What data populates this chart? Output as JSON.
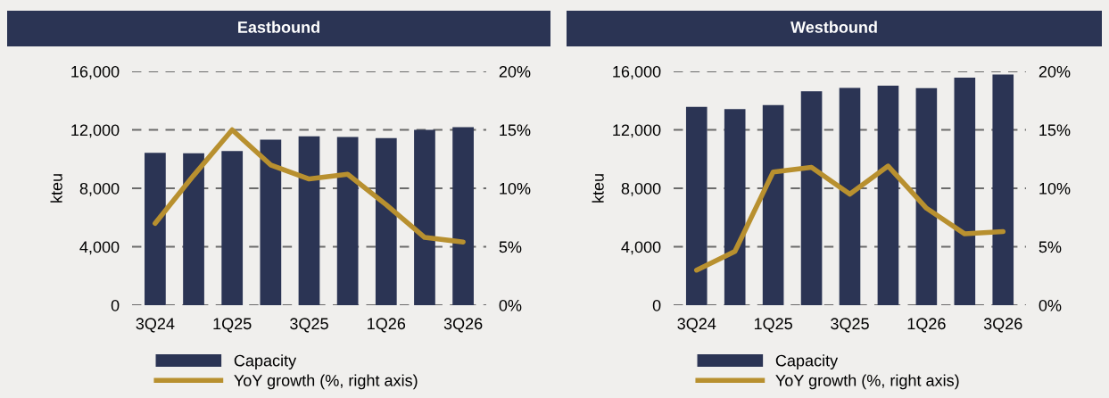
{
  "chart_data": [
    {
      "type": "bar",
      "title": "Eastbound",
      "ylabel": "kteu",
      "categories": [
        "3Q24",
        null,
        "1Q25",
        null,
        "3Q25",
        null,
        "1Q26",
        null,
        "3Q26"
      ],
      "series": [
        {
          "name": "Capacity",
          "color": "#2b3454",
          "values": [
            10430,
            10390,
            10550,
            11330,
            11550,
            11510,
            11430,
            12000,
            12190
          ]
        },
        {
          "name": "YoY growth (%, right axis)",
          "type": "line",
          "axis": "y2",
          "color": "#b8902f",
          "values": [
            7.0,
            11.1,
            15.0,
            12.0,
            10.8,
            11.2,
            8.6,
            5.8,
            5.4
          ]
        }
      ],
      "ylim": [
        0,
        16000
      ],
      "yticks": [
        0,
        {
          "value": 4000,
          "label": "4,000"
        },
        {
          "value": 8000,
          "label": "8,000"
        },
        {
          "value": 12000,
          "label": "12,000"
        },
        {
          "value": 16000,
          "label": "16,000"
        }
      ],
      "y2lim": [
        0,
        20
      ],
      "y2ticks": [
        {
          "value": 0,
          "label": "0%"
        },
        {
          "value": 5,
          "label": "5%"
        },
        {
          "value": 10,
          "label": "10%"
        },
        {
          "value": 15,
          "label": "15%"
        },
        {
          "value": 20,
          "label": "20%"
        }
      ],
      "grid": "y",
      "legend": "bottom"
    },
    {
      "type": "bar",
      "title": "Westbound",
      "ylabel": "kteu",
      "categories": [
        "3Q24",
        null,
        "1Q25",
        null,
        "3Q25",
        null,
        "1Q26",
        null,
        "3Q26"
      ],
      "series": [
        {
          "name": "Capacity",
          "color": "#2b3454",
          "values": [
            13580,
            13420,
            13700,
            14640,
            14870,
            15030,
            14850,
            15580,
            15790
          ]
        },
        {
          "name": "YoY growth (%, right axis)",
          "type": "line",
          "axis": "y2",
          "color": "#b8902f",
          "values": [
            3.0,
            4.6,
            11.4,
            11.8,
            9.5,
            11.9,
            8.3,
            6.1,
            6.3
          ]
        }
      ],
      "ylim": [
        0,
        16000
      ],
      "yticks": [
        0,
        {
          "value": 4000,
          "label": "4,000"
        },
        {
          "value": 8000,
          "label": "8,000"
        },
        {
          "value": 12000,
          "label": "12,000"
        },
        {
          "value": 16000,
          "label": "16,000"
        }
      ],
      "y2lim": [
        0,
        20
      ],
      "y2ticks": [
        {
          "value": 0,
          "label": "0%"
        },
        {
          "value": 5,
          "label": "5%"
        },
        {
          "value": 10,
          "label": "10%"
        },
        {
          "value": 15,
          "label": "15%"
        },
        {
          "value": 20,
          "label": "20%"
        }
      ],
      "grid": "y",
      "legend": "bottom"
    }
  ]
}
